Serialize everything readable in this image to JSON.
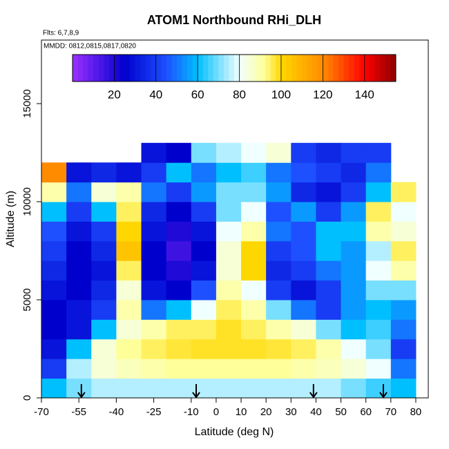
{
  "chart_data": {
    "type": "heatmap",
    "title": "ATOM1 Northbound RHi_DLH",
    "subtitle": "Flts: 6,7,8,9",
    "annotation": "MMDD: 0812,0815,0817,0820",
    "x_label": "Latitude (deg N)",
    "y_label": "Altitude (m)",
    "xlim": [
      -70,
      85
    ],
    "xticks": [
      -70,
      -55,
      -40,
      -25,
      -10,
      0,
      10,
      20,
      30,
      40,
      50,
      60,
      70,
      80
    ],
    "ylim": [
      0,
      18240
    ],
    "yticks": [
      0,
      5000,
      10000,
      15000
    ],
    "x_bins": [
      -70,
      -60,
      -50,
      -40,
      -30,
      -20,
      -10,
      0,
      10,
      20,
      30,
      40,
      50,
      60,
      70,
      80
    ],
    "y_bins": [
      0,
      1000,
      2000,
      3000,
      4000,
      5000,
      6000,
      7000,
      8000,
      9000,
      10000,
      11000,
      12000,
      13000
    ],
    "z": [
      [
        60,
        70,
        75,
        75,
        75,
        75,
        75,
        75,
        75,
        75,
        75,
        75,
        70,
        65,
        60
      ],
      [
        40,
        75,
        85,
        88,
        90,
        92,
        92,
        92,
        92,
        92,
        90,
        88,
        85,
        80,
        50
      ],
      [
        30,
        60,
        85,
        92,
        95,
        97,
        98,
        98,
        98,
        97,
        95,
        90,
        80,
        70,
        40
      ],
      [
        25,
        30,
        60,
        85,
        90,
        95,
        95,
        98,
        95,
        90,
        85,
        70,
        60,
        65,
        50
      ],
      [
        25,
        30,
        40,
        90,
        50,
        60,
        80,
        95,
        90,
        70,
        50,
        40,
        55,
        60,
        55
      ],
      [
        30,
        25,
        35,
        85,
        30,
        25,
        45,
        90,
        80,
        40,
        30,
        40,
        55,
        70,
        70
      ],
      [
        35,
        25,
        30,
        95,
        25,
        20,
        30,
        85,
        100,
        35,
        40,
        50,
        55,
        80,
        90
      ],
      [
        40,
        25,
        35,
        105,
        25,
        15,
        25,
        85,
        100,
        40,
        45,
        60,
        55,
        75,
        95
      ],
      [
        45,
        30,
        40,
        100,
        30,
        20,
        30,
        80,
        90,
        50,
        45,
        60,
        60,
        90,
        85
      ],
      [
        60,
        40,
        60,
        95,
        35,
        25,
        40,
        70,
        80,
        45,
        55,
        40,
        55,
        95,
        80
      ],
      [
        90,
        50,
        85,
        90,
        50,
        40,
        55,
        70,
        70,
        55,
        35,
        30,
        40,
        60,
        95
      ],
      [
        120,
        30,
        35,
        30,
        40,
        60,
        50,
        60,
        65,
        50,
        45,
        40,
        35,
        50,
        null
      ],
      [
        null,
        null,
        null,
        null,
        30,
        25,
        70,
        75,
        80,
        85,
        40,
        35,
        40,
        40,
        null
      ]
    ],
    "colorbar_lim": [
      0,
      155
    ],
    "colorbar_ticks": [
      20,
      40,
      60,
      80,
      100,
      120,
      140
    ],
    "colorscale": [
      [
        0,
        "#9b30ff"
      ],
      [
        25,
        "#0000cd"
      ],
      [
        45,
        "#1e50ff"
      ],
      [
        60,
        "#00bfff"
      ],
      [
        80,
        "#f0ffff"
      ],
      [
        92,
        "#ffff99"
      ],
      [
        100,
        "#ffd700"
      ],
      [
        120,
        "#ff8c00"
      ],
      [
        140,
        "#ff0000"
      ],
      [
        155,
        "#8b0000"
      ]
    ],
    "flight_markers": [
      -54,
      -8,
      39,
      67
    ]
  }
}
